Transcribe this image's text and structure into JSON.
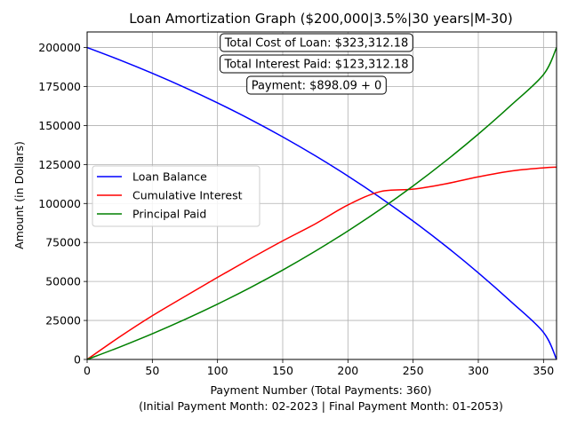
{
  "chart_data": {
    "type": "line",
    "title": "Loan Amortization Graph ($200,000|3.5%|30 years|M-30)",
    "xlabel_line1": "Payment Number (Total Payments: 360)",
    "xlabel_line2": "(Initial Payment Month: 02-2023 | Final Payment Month: 01-2053)",
    "ylabel": "Amount (in Dollars)",
    "xlim": [
      0,
      360
    ],
    "ylim": [
      0,
      210000
    ],
    "xticks": [
      0,
      50,
      100,
      150,
      200,
      250,
      300,
      350
    ],
    "yticks": [
      0,
      25000,
      50000,
      75000,
      100000,
      125000,
      150000,
      175000,
      200000
    ],
    "grid": true,
    "legend_position": "center-left",
    "annotations": [
      "Total Cost of Loan: $323,312.18",
      "Total Interest Paid: $123,312.18",
      "Payment: $898.09 + 0"
    ],
    "x": [
      0,
      25,
      50,
      75,
      100,
      125,
      150,
      175,
      200,
      225,
      250,
      275,
      300,
      325,
      350,
      360
    ],
    "series": [
      {
        "name": "Loan Balance",
        "color": "#0000ff",
        "values": [
          200000,
          192048,
          183509,
          174352,
          164531,
          153999,
          142704,
          130590,
          117599,
          103667,
          88725,
          72702,
          55517,
          37087,
          17322,
          0
        ]
      },
      {
        "name": "Cumulative Interest",
        "color": "#ff0000",
        "values": [
          0,
          14500,
          28024,
          40419,
          52624,
          64545,
          76042,
          86945,
          99055,
          107676,
          109182,
          112613,
          117100,
          120811,
          122889,
          123312
        ]
      },
      {
        "name": "Principal Paid",
        "color": "#008000",
        "values": [
          0,
          7952,
          16491,
          25648,
          35469,
          46001,
          57296,
          69410,
          82401,
          96333,
          111275,
          127298,
          144483,
          162913,
          182678,
          200000
        ]
      }
    ]
  }
}
